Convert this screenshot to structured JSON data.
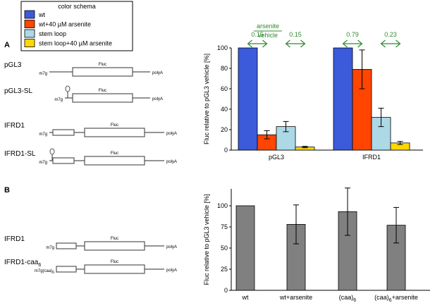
{
  "legend": {
    "title": "color schema",
    "items": [
      {
        "label": "wt",
        "color": "#3b5bdb"
      },
      {
        "label": "wt+40 µM arsenite",
        "color": "#ff4500"
      },
      {
        "label": "stem loop",
        "color": "#add8e6"
      },
      {
        "label": "stem loop+40 µM arsenite",
        "color": "#ffd700"
      }
    ]
  },
  "panelA": {
    "letter": "A",
    "constructs": [
      {
        "name": "pGL3",
        "cap": "m7g",
        "fluc": "Fluc",
        "polyA": "polyA",
        "stem_loop": false,
        "utr_box": false
      },
      {
        "name": "pGL3-SL",
        "cap": "m7g",
        "fluc": "Fluc",
        "polyA": "polyA",
        "stem_loop": true,
        "utr_box": false
      },
      {
        "name": "IFRD1",
        "cap": "m7g",
        "fluc": "Fluc",
        "polyA": "polyA",
        "stem_loop": false,
        "utr_box": true
      },
      {
        "name": "IFRD1-SL",
        "cap": "m7g",
        "fluc": "Fluc",
        "polyA": "polyA",
        "stem_loop": true,
        "utr_box": true
      }
    ]
  },
  "panelB": {
    "letter": "B",
    "constructs": [
      {
        "name": "IFRD1",
        "cap": "m7g",
        "fluc": "Fluc",
        "polyA": "polyA"
      },
      {
        "name": "IFRD1-caa",
        "name_sub": "6",
        "cap": "m7g(caa)",
        "cap_sub": "6",
        "fluc": "Fluc",
        "polyA": "polyA"
      }
    ]
  },
  "ratio_header": {
    "numerator": "arsenite",
    "denominator": "vehicle",
    "color": "#2e8b2e"
  },
  "chart_data": [
    {
      "type": "bar",
      "ylabel": "Fluc relative to pGL3 vehicle [%]",
      "ylim": [
        0,
        100
      ],
      "yticks": [
        0,
        20,
        40,
        60,
        80,
        100
      ],
      "categories": [
        "pGL3",
        "IFRD1"
      ],
      "series": [
        {
          "name": "wt",
          "color": "#3b5bdb",
          "values": [
            100,
            100
          ],
          "errors": [
            0,
            0
          ]
        },
        {
          "name": "wt+40 µM arsenite",
          "color": "#ff4500",
          "values": [
            15,
            79
          ],
          "errors": [
            4,
            19
          ]
        },
        {
          "name": "stem loop",
          "color": "#add8e6",
          "values": [
            23,
            32
          ],
          "errors": [
            5,
            9
          ]
        },
        {
          "name": "stem loop+40 µM arsenite",
          "color": "#ffd700",
          "values": [
            3,
            7
          ],
          "errors": [
            0.7,
            1.5
          ]
        }
      ],
      "ratios": [
        {
          "category": "pGL3",
          "pair": "wt",
          "value": "0.15"
        },
        {
          "category": "pGL3",
          "pair": "stem loop",
          "value": "0.15"
        },
        {
          "category": "IFRD1",
          "pair": "wt",
          "value": "0.79"
        },
        {
          "category": "IFRD1",
          "pair": "stem loop",
          "value": "0.23"
        }
      ]
    },
    {
      "type": "bar",
      "ylabel": "Fluc relative to pGL3 vehicle [%]",
      "ylim": [
        0,
        120
      ],
      "yticks": [
        0,
        25,
        50,
        75,
        100
      ],
      "color": "#808080",
      "categories": [
        {
          "text": "wt",
          "sub": "",
          "after": ""
        },
        {
          "text": "wt+arsenite",
          "sub": "",
          "after": ""
        },
        {
          "text": "(caa)",
          "sub": "6",
          "after": ""
        },
        {
          "text": "(caa)",
          "sub": "6",
          "after": "+arsenite"
        }
      ],
      "values": [
        100,
        78,
        93,
        77
      ],
      "errors": [
        0,
        23,
        28,
        21
      ]
    }
  ]
}
